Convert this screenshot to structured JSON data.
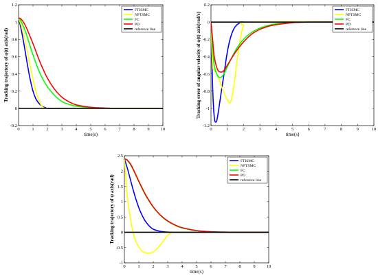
{
  "chart_data": [
    {
      "type": "line",
      "xlabel": "time(s)",
      "ylabel": "Tracking trajectory of φ(t) axis(rad)",
      "xlim": [
        0,
        10
      ],
      "ylim": [
        -0.2,
        1.2
      ],
      "xticks": [
        0,
        1,
        2,
        3,
        4,
        5,
        6,
        7,
        8,
        9,
        10
      ],
      "yticks": [
        -0.2,
        0,
        0.2,
        0.4,
        0.6,
        0.8,
        1,
        1.2
      ],
      "legend": "top-right",
      "series": [
        {
          "name": "FTISMC",
          "color": "#0000ff",
          "x": [
            0,
            0.2,
            0.4,
            0.6,
            0.8,
            1.0,
            1.2,
            1.4,
            1.6,
            1.8,
            2.0,
            2.4,
            3,
            4,
            10
          ],
          "y": [
            1.05,
            0.9,
            0.72,
            0.52,
            0.34,
            0.2,
            0.11,
            0.06,
            0.03,
            0.01,
            0.0,
            0,
            0,
            0,
            0
          ]
        },
        {
          "name": "NFTSMC",
          "color": "#ffff00",
          "x": [
            0,
            0.2,
            0.4,
            0.6,
            0.8,
            1.0,
            1.2,
            1.4,
            1.6,
            1.8,
            2.0,
            3,
            10
          ],
          "y": [
            1.05,
            0.95,
            0.82,
            0.67,
            0.5,
            0.34,
            0.2,
            0.1,
            0.03,
            0.0,
            0,
            0,
            0
          ]
        },
        {
          "name": "FC",
          "color": "#00ff00",
          "x": [
            0,
            0.2,
            0.5,
            1,
            1.5,
            2,
            2.5,
            3,
            3.5,
            4,
            5,
            6,
            7,
            10
          ],
          "y": [
            1.05,
            1.0,
            0.88,
            0.62,
            0.4,
            0.25,
            0.15,
            0.08,
            0.045,
            0.025,
            0.008,
            0.002,
            0,
            0
          ]
        },
        {
          "name": "PD",
          "color": "#ff0000",
          "x": [
            0,
            0.2,
            0.5,
            1,
            1.5,
            2,
            2.5,
            3,
            3.5,
            4,
            5,
            6,
            7,
            10
          ],
          "y": [
            1.05,
            1.03,
            0.95,
            0.75,
            0.53,
            0.35,
            0.22,
            0.13,
            0.075,
            0.04,
            0.012,
            0.003,
            0,
            0
          ]
        },
        {
          "name": "reference line",
          "color": "#000000",
          "x": [
            0,
            10
          ],
          "y": [
            0,
            0
          ]
        }
      ]
    },
    {
      "type": "line",
      "xlabel": "time(s)",
      "ylabel": "Tracking error of angular velocity of φ(t) axis(rad/s)",
      "xlim": [
        0,
        10
      ],
      "ylim": [
        -1.2,
        0.2
      ],
      "xticks": [
        0,
        1,
        2,
        3,
        4,
        5,
        6,
        7,
        8,
        9,
        10
      ],
      "yticks": [
        -1.2,
        -1,
        -0.8,
        -0.6,
        -0.4,
        -0.2,
        0,
        0.2
      ],
      "legend": "top-right",
      "series": [
        {
          "name": "FTISMC",
          "color": "#0000ff",
          "x": [
            0,
            0.1,
            0.2,
            0.3,
            0.4,
            0.6,
            0.8,
            1.0,
            1.2,
            1.4,
            1.6,
            1.8,
            2.0,
            2.5,
            10
          ],
          "y": [
            0,
            -0.75,
            -1.1,
            -1.16,
            -1.1,
            -0.85,
            -0.6,
            -0.35,
            -0.18,
            -0.08,
            -0.03,
            -0.01,
            0,
            0,
            0
          ]
        },
        {
          "name": "NFTSMC",
          "color": "#ffff00",
          "x": [
            0,
            0.1,
            0.2,
            0.4,
            0.6,
            0.8,
            1.0,
            1.2,
            1.4,
            1.6,
            1.8,
            2.0,
            2.5,
            10
          ],
          "y": [
            0,
            -0.5,
            -0.55,
            -0.62,
            -0.72,
            -0.82,
            -0.9,
            -0.93,
            -0.75,
            -0.45,
            -0.2,
            -0.05,
            0,
            0
          ]
        },
        {
          "name": "FC",
          "color": "#00ff00",
          "x": [
            0,
            0.1,
            0.2,
            0.4,
            0.6,
            0.8,
            1,
            1.5,
            2,
            2.5,
            3,
            3.5,
            4,
            5,
            6,
            10
          ],
          "y": [
            0,
            -0.3,
            -0.5,
            -0.62,
            -0.64,
            -0.6,
            -0.52,
            -0.33,
            -0.2,
            -0.12,
            -0.07,
            -0.04,
            -0.02,
            -0.005,
            0,
            0
          ]
        },
        {
          "name": "PD",
          "color": "#ff0000",
          "x": [
            0,
            0.1,
            0.2,
            0.4,
            0.6,
            0.8,
            1,
            1.5,
            2,
            2.5,
            3,
            3.5,
            4,
            5,
            6,
            10
          ],
          "y": [
            0,
            -0.2,
            -0.4,
            -0.55,
            -0.58,
            -0.56,
            -0.5,
            -0.35,
            -0.23,
            -0.14,
            -0.085,
            -0.05,
            -0.03,
            -0.008,
            0,
            0
          ]
        },
        {
          "name": "reference line",
          "color": "#000000",
          "x": [
            0,
            10
          ],
          "y": [
            0,
            0
          ]
        }
      ]
    },
    {
      "type": "line",
      "xlabel": "time(s)",
      "ylabel": "Tracking trajectory of ψ axis(rad)",
      "xlim": [
        0,
        10
      ],
      "ylim": [
        -1,
        2.5
      ],
      "xticks": [
        0,
        1,
        2,
        3,
        4,
        5,
        6,
        7,
        8,
        9,
        10
      ],
      "yticks": [
        -1,
        -0.5,
        0,
        0.5,
        1,
        1.5,
        2,
        2.5
      ],
      "legend": "top-right",
      "series": [
        {
          "name": "FTISMC",
          "color": "#0000ff",
          "x": [
            0,
            0.2,
            0.4,
            0.6,
            0.8,
            1,
            1.2,
            1.4,
            1.6,
            1.8,
            2,
            2.4,
            2.8,
            3.2,
            4,
            10
          ],
          "y": [
            2.4,
            2.1,
            1.75,
            1.4,
            1.08,
            0.8,
            0.58,
            0.4,
            0.27,
            0.17,
            0.1,
            0.04,
            0.01,
            0,
            0,
            0
          ]
        },
        {
          "name": "NFTSMC",
          "color": "#ffff00",
          "x": [
            0,
            0.1,
            0.2,
            0.4,
            0.6,
            0.8,
            1,
            1.2,
            1.4,
            1.6,
            1.8,
            2,
            2.2,
            2.4,
            2.6,
            2.8,
            3,
            3.2,
            3.4,
            4,
            10
          ],
          "y": [
            2.4,
            1.8,
            1.2,
            0.5,
            0.0,
            -0.3,
            -0.48,
            -0.6,
            -0.66,
            -0.69,
            -0.68,
            -0.64,
            -0.57,
            -0.47,
            -0.35,
            -0.22,
            -0.1,
            -0.03,
            0,
            0,
            0
          ]
        },
        {
          "name": "FC",
          "color": "#00ff00",
          "x": [
            0,
            0.2,
            0.5,
            1,
            1.5,
            2,
            2.5,
            3,
            3.5,
            4,
            5,
            6,
            7,
            8,
            10
          ],
          "y": [
            2.4,
            2.35,
            2.15,
            1.65,
            1.18,
            0.82,
            0.55,
            0.36,
            0.23,
            0.14,
            0.05,
            0.015,
            0.004,
            0,
            0
          ]
        },
        {
          "name": "PD",
          "color": "#ff0000",
          "x": [
            0,
            0.2,
            0.5,
            1,
            1.5,
            2,
            2.5,
            3,
            3.5,
            4,
            5,
            6,
            7,
            8,
            10
          ],
          "y": [
            2.4,
            2.36,
            2.17,
            1.67,
            1.2,
            0.83,
            0.56,
            0.37,
            0.24,
            0.15,
            0.055,
            0.018,
            0.005,
            0,
            0
          ]
        },
        {
          "name": "reference line",
          "color": "#000000",
          "x": [
            0,
            10
          ],
          "y": [
            0,
            0
          ]
        }
      ]
    }
  ]
}
